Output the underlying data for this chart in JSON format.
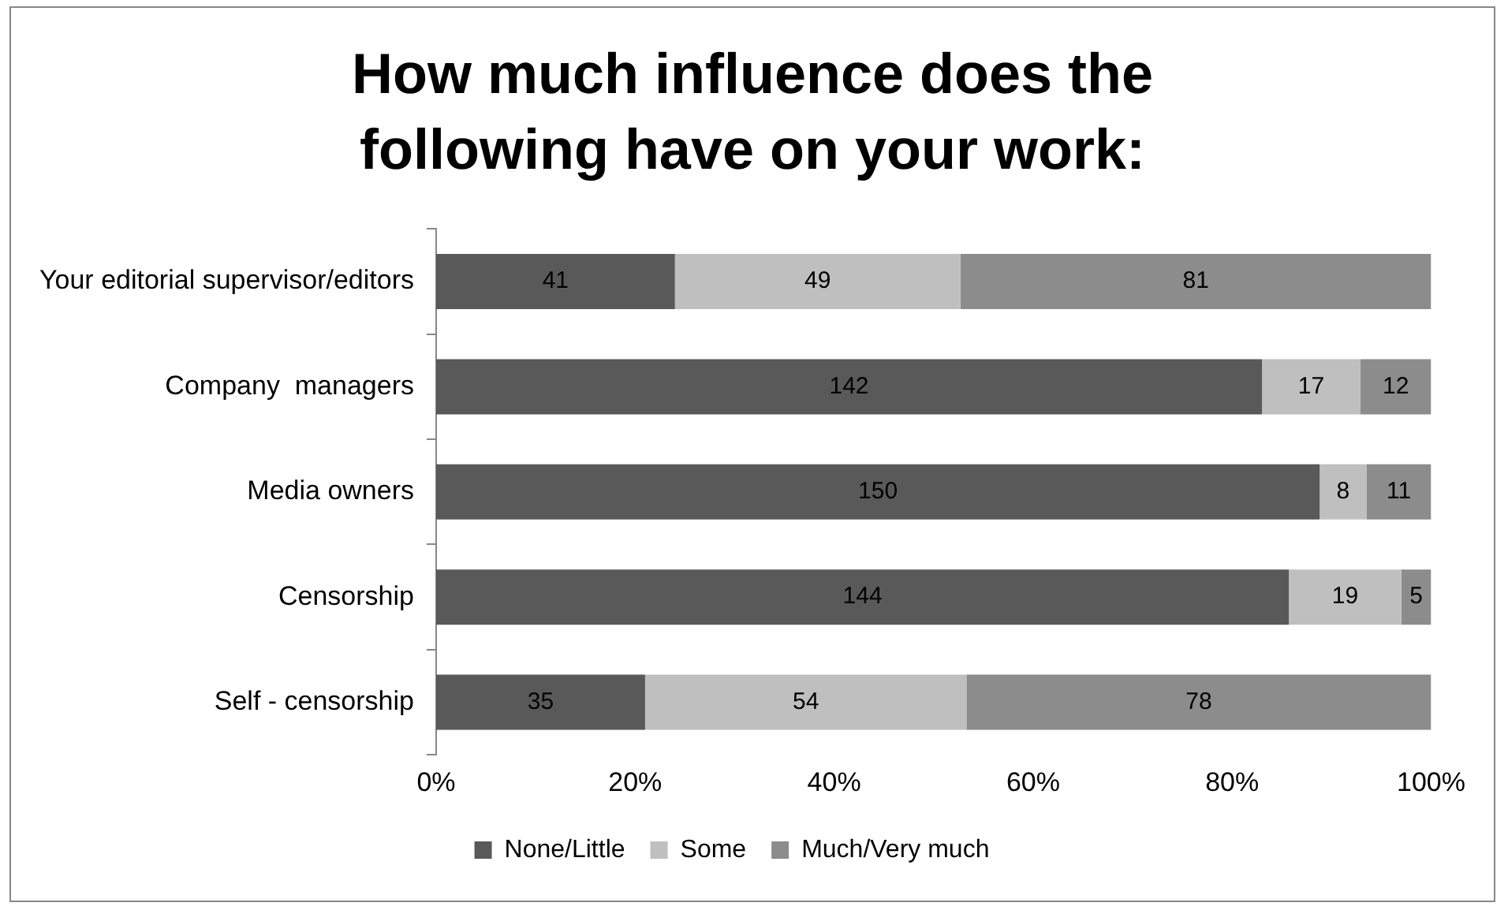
{
  "chart_data": {
    "type": "bar",
    "title": "How much influence does the following have on your work:",
    "orientation": "horizontal",
    "stacked": true,
    "legend": "bottom",
    "categories": [
      "Your editorial supervisor/editors",
      "Company  managers",
      "Media owners",
      "Censorship",
      "Self - censorship"
    ],
    "series": [
      {
        "name": "None/Little",
        "color": "#595959",
        "values": [
          24.0,
          83.0,
          88.8,
          85.7,
          21.0
        ]
      },
      {
        "name": "Some",
        "color": "#bfbfbf",
        "values": [
          28.7,
          9.9,
          4.7,
          11.3,
          32.3
        ]
      },
      {
        "name": "Much/Very much",
        "color": "#8c8c8c",
        "values": [
          47.3,
          7.1,
          6.5,
          3.0,
          46.7
        ]
      }
    ],
    "annotations": [
      "41",
      "49",
      "81",
      "142",
      "17",
      "12",
      "150",
      "8",
      "11",
      "144",
      "19",
      "5",
      "35",
      "54",
      "78"
    ],
    "xlim": [
      0,
      100
    ],
    "xticks": [
      {
        "value": 0,
        "label": "0%"
      },
      {
        "value": 20,
        "label": "20%"
      },
      {
        "value": 40,
        "label": "40%"
      },
      {
        "value": 60,
        "label": "60%"
      },
      {
        "value": 80,
        "label": "80%"
      },
      {
        "value": 100,
        "label": "100%"
      }
    ]
  }
}
